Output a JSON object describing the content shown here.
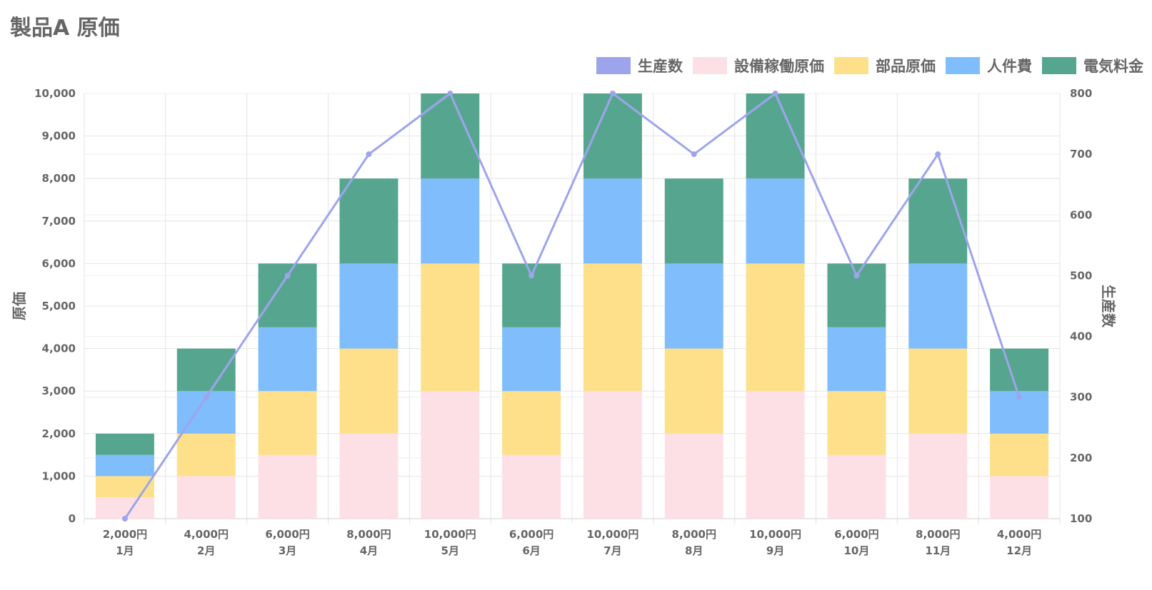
{
  "chart_data": {
    "type": "bar",
    "title": "製品A 原価",
    "categories": [
      "1月",
      "2月",
      "3月",
      "4月",
      "5月",
      "6月",
      "7月",
      "8月",
      "9月",
      "10月",
      "11月",
      "12月"
    ],
    "category_totals": [
      "2,000円",
      "4,000円",
      "6,000円",
      "8,000円",
      "10,000円",
      "6,000円",
      "10,000円",
      "8,000円",
      "10,000円",
      "6,000円",
      "8,000円",
      "4,000円"
    ],
    "stacked": true,
    "ylabel": "原価",
    "ylim": [
      0,
      10000
    ],
    "y_ticks": [
      "0",
      "1,000",
      "2,000",
      "3,000",
      "4,000",
      "5,000",
      "6,000",
      "7,000",
      "8,000",
      "9,000",
      "10,000"
    ],
    "y2label": "生産数",
    "y2lim": [
      100,
      800
    ],
    "y2_ticks": [
      "100",
      "200",
      "300",
      "400",
      "500",
      "600",
      "700",
      "800"
    ],
    "grid": true,
    "legend_position": "top-right",
    "series": [
      {
        "name": "設備稼働原価",
        "type": "bar",
        "axis": "left",
        "color": "#fde0e6",
        "values": [
          500,
          1000,
          1500,
          2000,
          3000,
          1500,
          3000,
          2000,
          3000,
          1500,
          2000,
          1000
        ]
      },
      {
        "name": "部品原価",
        "type": "bar",
        "axis": "left",
        "color": "#fde089",
        "values": [
          500,
          1000,
          1500,
          2000,
          3000,
          1500,
          3000,
          2000,
          3000,
          1500,
          2000,
          1000
        ]
      },
      {
        "name": "人件費",
        "type": "bar",
        "axis": "left",
        "color": "#80bdfc",
        "values": [
          500,
          1000,
          1500,
          2000,
          2000,
          1500,
          2000,
          2000,
          2000,
          1500,
          2000,
          1000
        ]
      },
      {
        "name": "電気料金",
        "type": "bar",
        "axis": "left",
        "color": "#56a68f",
        "values": [
          500,
          1000,
          1500,
          2000,
          2000,
          1500,
          2000,
          2000,
          2000,
          1500,
          2000,
          1000
        ]
      },
      {
        "name": "生産数",
        "type": "line",
        "axis": "right",
        "color": "#9ea4eb",
        "values": [
          100,
          300,
          500,
          700,
          800,
          500,
          800,
          700,
          800,
          500,
          700,
          300
        ]
      }
    ],
    "legend_order": [
      "生産数",
      "設備稼働原価",
      "部品原価",
      "人件費",
      "電気料金"
    ]
  }
}
